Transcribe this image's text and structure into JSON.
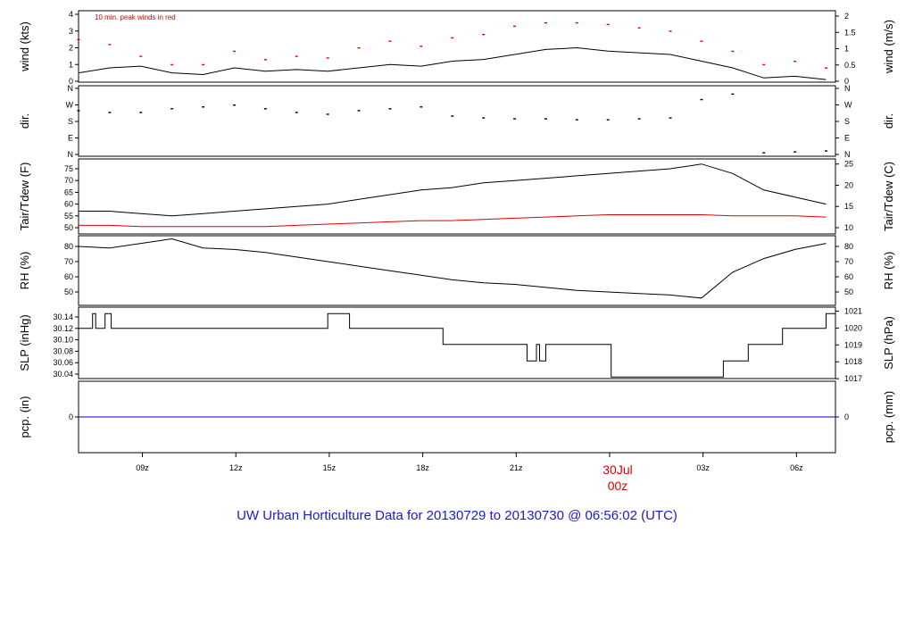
{
  "title": "UW Urban Horticulture Data for 20130729  to  20130730 @ 06:56:02  (UTC)",
  "colors": {
    "primary": "#000000",
    "peak": "#e00000",
    "precip": "#0000cc",
    "title": "#1a1ad0",
    "date": "#e00000"
  },
  "chart_data": [
    {
      "id": "wind",
      "type": "line",
      "ylabel": "wind (kts)",
      "ylabel_right": "wind (m/s)",
      "ylim": [
        0,
        4
      ],
      "yticks": [
        "0",
        "1",
        "2",
        "3",
        "4"
      ],
      "yticks_right": [
        "0",
        "0.5",
        "1",
        "1.5",
        "2"
      ],
      "annotation": "10 min. peak winds in red",
      "series": [
        {
          "x": [
            0,
            1,
            2,
            3,
            4,
            5,
            6,
            7,
            8,
            9,
            10,
            11,
            12,
            13,
            14,
            15,
            16,
            17,
            18,
            19,
            20,
            21,
            22,
            23,
            24
          ],
          "y": [
            0.5,
            0.8,
            0.9,
            0.5,
            0.4,
            0.8,
            0.6,
            0.7,
            0.6,
            0.8,
            1.0,
            0.9,
            1.2,
            1.3,
            1.6,
            1.9,
            2.0,
            1.8,
            1.7,
            1.6,
            1.2,
            0.8,
            0.2,
            0.3,
            0.1
          ]
        },
        {
          "name": "10 min. peak winds",
          "x": [
            0,
            1,
            2,
            3,
            4,
            5,
            6,
            7,
            8,
            9,
            10,
            11,
            12,
            13,
            14,
            15,
            16,
            17,
            18,
            19,
            20,
            21,
            22,
            23,
            24
          ],
          "y": [
            2.5,
            2.2,
            1.5,
            1.0,
            1.0,
            1.8,
            1.3,
            1.5,
            1.4,
            2.0,
            2.4,
            2.1,
            2.6,
            2.8,
            3.3,
            3.5,
            3.5,
            3.4,
            3.2,
            3.0,
            2.4,
            1.8,
            1.0,
            1.2,
            0.8
          ]
        }
      ]
    },
    {
      "id": "dir",
      "type": "scatter",
      "ylabel": "dir.",
      "ylabel_right": "dir.",
      "ylim": [
        0,
        360
      ],
      "yticks": [
        "N",
        "E",
        "S",
        "W",
        "N"
      ],
      "yticks_right": [
        "N",
        "E",
        "S",
        "W",
        "N"
      ],
      "series": [
        {
          "x": [
            0,
            1,
            2,
            3,
            4,
            5,
            6,
            7,
            8,
            9,
            10,
            11,
            12,
            13,
            14,
            15,
            16,
            17,
            18,
            19,
            20,
            21,
            22,
            23,
            24
          ],
          "y": [
            240,
            230,
            230,
            250,
            260,
            270,
            250,
            230,
            220,
            240,
            250,
            260,
            210,
            200,
            195,
            195,
            190,
            190,
            195,
            200,
            300,
            330,
            10,
            15,
            20
          ]
        }
      ]
    },
    {
      "id": "temp",
      "type": "line",
      "ylabel": "Tair/Tdew (F)",
      "ylabel_right": "Tair/Tdew (C)",
      "ylim": [
        48,
        78
      ],
      "yticks": [
        "50",
        "55",
        "60",
        "65",
        "70",
        "75"
      ],
      "yticks_right": [
        "10",
        "15",
        "20",
        "25"
      ],
      "series": [
        {
          "x": [
            0,
            1,
            2,
            3,
            4,
            5,
            6,
            7,
            8,
            9,
            10,
            11,
            12,
            13,
            14,
            15,
            16,
            17,
            18,
            19,
            20,
            21,
            22,
            23,
            24
          ],
          "y": [
            57,
            57,
            56,
            55,
            56,
            57,
            58,
            59,
            60,
            62,
            64,
            66,
            67,
            69,
            70,
            71,
            72,
            73,
            74,
            75,
            77,
            73,
            66,
            63,
            60
          ]
        },
        {
          "x": [
            0,
            1,
            2,
            3,
            4,
            5,
            6,
            7,
            8,
            9,
            10,
            11,
            12,
            13,
            14,
            15,
            16,
            17,
            18,
            19,
            20,
            21,
            22,
            23,
            24
          ],
          "y": [
            51,
            51,
            50.5,
            50.5,
            50.5,
            50.5,
            50.5,
            51,
            51.5,
            52,
            52.5,
            53,
            53,
            53.5,
            54,
            54.5,
            55,
            55.5,
            55.5,
            55.5,
            55.5,
            55,
            55,
            55,
            54.5
          ]
        }
      ]
    },
    {
      "id": "rh",
      "type": "line",
      "ylabel": "RH (%)",
      "ylabel_right": "RH (%)",
      "ylim": [
        40,
        86
      ],
      "yticks": [
        "50",
        "60",
        "70",
        "80"
      ],
      "yticks_right": [
        "50",
        "60",
        "70",
        "80"
      ],
      "series": [
        {
          "x": [
            0,
            1,
            2,
            3,
            4,
            5,
            6,
            7,
            8,
            9,
            10,
            11,
            12,
            13,
            14,
            15,
            16,
            17,
            18,
            19,
            20,
            21,
            22,
            23,
            24
          ],
          "y": [
            80,
            79,
            82,
            85,
            79,
            78,
            76,
            73,
            70,
            67,
            64,
            61,
            58,
            56,
            55,
            53,
            51,
            50,
            49,
            48,
            46,
            63,
            72,
            78,
            82
          ]
        }
      ]
    },
    {
      "id": "slp",
      "type": "line",
      "ylabel": "SLP (inHg)",
      "ylabel_right": "SLP (hPa)",
      "ylim": [
        30.035,
        30.15
      ],
      "yticks": [
        "30.04",
        "30.06",
        "30.08",
        "30.10",
        "30.12",
        "30.14"
      ],
      "yticks_right": [
        "1017",
        "1018",
        "1019",
        "1020",
        "1021"
      ],
      "series": [
        {
          "x": [
            0,
            0.45,
            0.45,
            0.55,
            0.55,
            0.85,
            0.85,
            1.05,
            1.05,
            8.0,
            8.0,
            8.7,
            8.7,
            11.7,
            11.7,
            14.4,
            14.4,
            14.7,
            14.7,
            14.8,
            14.8,
            15.0,
            15.0,
            17.1,
            17.1,
            20.7,
            20.7,
            21.5,
            21.5,
            22.6,
            22.6,
            24.0,
            24.0,
            24.3
          ],
          "y": [
            30.12,
            30.12,
            30.146,
            30.146,
            30.12,
            30.12,
            30.146,
            30.146,
            30.12,
            30.12,
            30.146,
            30.146,
            30.12,
            30.12,
            30.092,
            30.092,
            30.063,
            30.063,
            30.092,
            30.092,
            30.063,
            30.063,
            30.092,
            30.092,
            30.035,
            30.035,
            30.063,
            30.063,
            30.092,
            30.092,
            30.12,
            30.12,
            30.146,
            30.146
          ]
        }
      ]
    },
    {
      "id": "pcp",
      "type": "line",
      "ylabel": "pcp. (in)",
      "ylabel_right": "pcp. (mm)",
      "ylim": [
        -1,
        0.5
      ],
      "yticks": [
        "0"
      ],
      "yticks_right": [
        "0"
      ],
      "series": [
        {
          "x": [
            0,
            24.3
          ],
          "y": [
            0,
            0
          ]
        }
      ]
    }
  ],
  "xaxis": {
    "ticks": [
      {
        "x": 2.05,
        "label": "09z"
      },
      {
        "x": 5.05,
        "label": "12z"
      },
      {
        "x": 8.05,
        "label": "15z"
      },
      {
        "x": 11.05,
        "label": "18z"
      },
      {
        "x": 14.05,
        "label": "21z"
      },
      {
        "x": 20.05,
        "label": "03z"
      },
      {
        "x": 23.05,
        "label": "06z"
      }
    ],
    "date_tick": {
      "x": 17.05,
      "label": "30Jul",
      "sublabel": "00z"
    },
    "xlim": [
      0,
      24.3
    ]
  }
}
